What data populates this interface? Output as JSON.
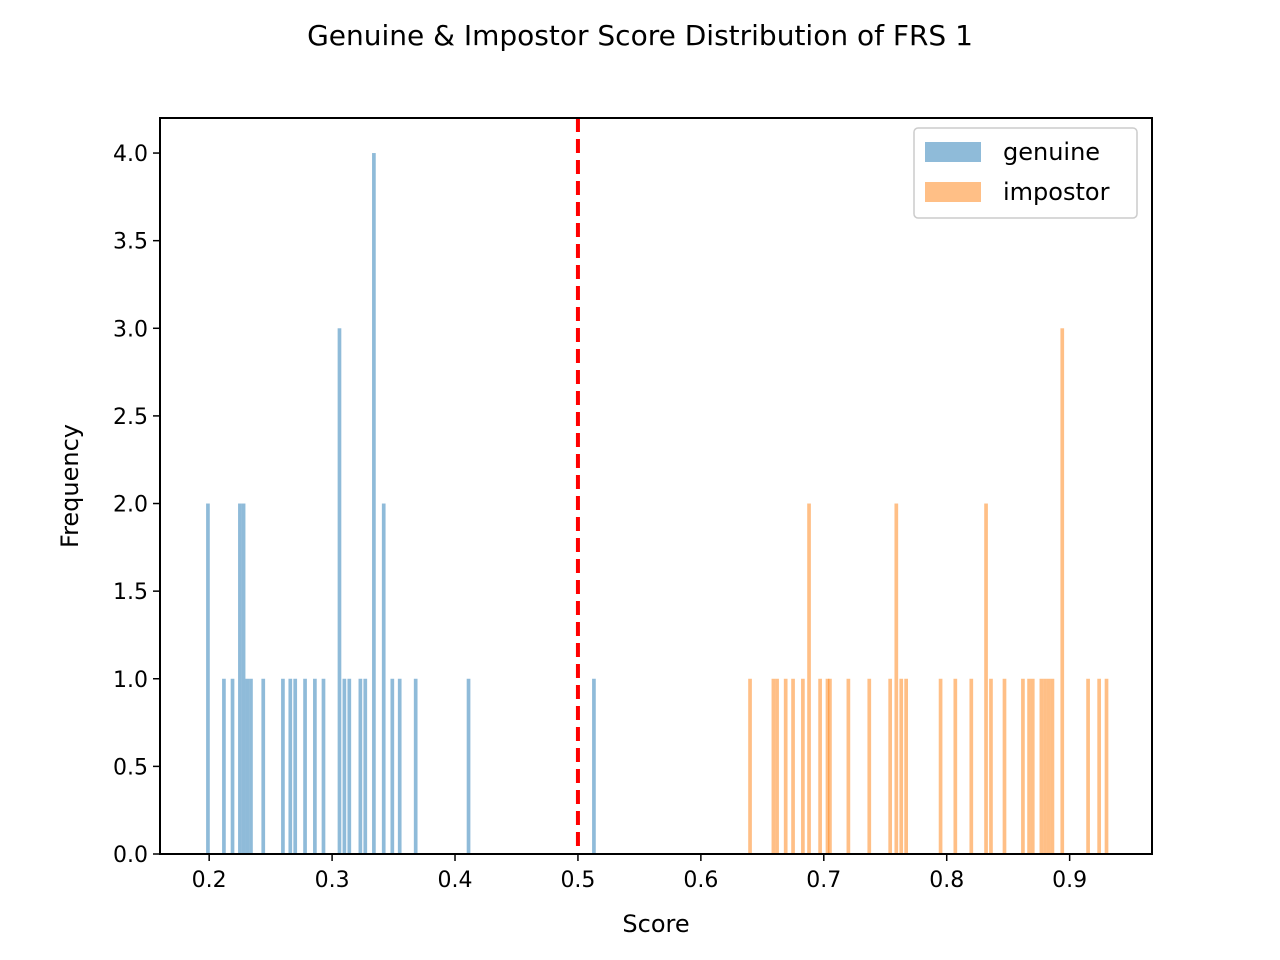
{
  "chart_data": {
    "type": "bar",
    "title": "Genuine & Impostor Score Distribution of FRS 1",
    "xlabel": "Score",
    "ylabel": "Frequency",
    "xlim": [
      0.16,
      0.967
    ],
    "ylim": [
      0,
      4.2
    ],
    "xticks": [
      "0.2",
      "0.3",
      "0.4",
      "0.5",
      "0.6",
      "0.7",
      "0.8",
      "0.9"
    ],
    "yticks": [
      "0.0",
      "0.5",
      "1.0",
      "1.5",
      "2.0",
      "2.5",
      "3.0",
      "3.5",
      "4.0"
    ],
    "bar_width": 0.003,
    "threshold": 0.5,
    "legend": "top-right",
    "series": [
      {
        "name": "genuine",
        "color": "#1f77b4",
        "opacity": 0.5,
        "bars": [
          {
            "x": 0.199,
            "y": 2
          },
          {
            "x": 0.212,
            "y": 1
          },
          {
            "x": 0.219,
            "y": 1
          },
          {
            "x": 0.225,
            "y": 2
          },
          {
            "x": 0.228,
            "y": 2
          },
          {
            "x": 0.231,
            "y": 1
          },
          {
            "x": 0.234,
            "y": 1
          },
          {
            "x": 0.244,
            "y": 1
          },
          {
            "x": 0.26,
            "y": 1
          },
          {
            "x": 0.266,
            "y": 1
          },
          {
            "x": 0.27,
            "y": 1
          },
          {
            "x": 0.278,
            "y": 1
          },
          {
            "x": 0.286,
            "y": 1
          },
          {
            "x": 0.293,
            "y": 1
          },
          {
            "x": 0.306,
            "y": 3
          },
          {
            "x": 0.31,
            "y": 1
          },
          {
            "x": 0.314,
            "y": 1
          },
          {
            "x": 0.323,
            "y": 1
          },
          {
            "x": 0.327,
            "y": 1
          },
          {
            "x": 0.334,
            "y": 4
          },
          {
            "x": 0.342,
            "y": 2
          },
          {
            "x": 0.349,
            "y": 1
          },
          {
            "x": 0.355,
            "y": 1
          },
          {
            "x": 0.368,
            "y": 1
          },
          {
            "x": 0.411,
            "y": 1
          },
          {
            "x": 0.513,
            "y": 1
          }
        ]
      },
      {
        "name": "impostor",
        "color": "#ff7f0e",
        "opacity": 0.5,
        "bars": [
          {
            "x": 0.64,
            "y": 1
          },
          {
            "x": 0.659,
            "y": 1
          },
          {
            "x": 0.662,
            "y": 1
          },
          {
            "x": 0.669,
            "y": 1
          },
          {
            "x": 0.675,
            "y": 1
          },
          {
            "x": 0.683,
            "y": 1
          },
          {
            "x": 0.688,
            "y": 2
          },
          {
            "x": 0.697,
            "y": 1
          },
          {
            "x": 0.703,
            "y": 1
          },
          {
            "x": 0.705,
            "y": 1
          },
          {
            "x": 0.72,
            "y": 1
          },
          {
            "x": 0.737,
            "y": 1
          },
          {
            "x": 0.754,
            "y": 1
          },
          {
            "x": 0.759,
            "y": 2
          },
          {
            "x": 0.763,
            "y": 1
          },
          {
            "x": 0.767,
            "y": 1
          },
          {
            "x": 0.795,
            "y": 1
          },
          {
            "x": 0.807,
            "y": 1
          },
          {
            "x": 0.82,
            "y": 1
          },
          {
            "x": 0.832,
            "y": 2
          },
          {
            "x": 0.836,
            "y": 1
          },
          {
            "x": 0.847,
            "y": 1
          },
          {
            "x": 0.862,
            "y": 1
          },
          {
            "x": 0.867,
            "y": 1
          },
          {
            "x": 0.87,
            "y": 1
          },
          {
            "x": 0.877,
            "y": 1
          },
          {
            "x": 0.88,
            "y": 1
          },
          {
            "x": 0.883,
            "y": 1
          },
          {
            "x": 0.886,
            "y": 1
          },
          {
            "x": 0.894,
            "y": 3
          },
          {
            "x": 0.915,
            "y": 1
          },
          {
            "x": 0.924,
            "y": 1
          },
          {
            "x": 0.93,
            "y": 1
          }
        ]
      }
    ]
  }
}
